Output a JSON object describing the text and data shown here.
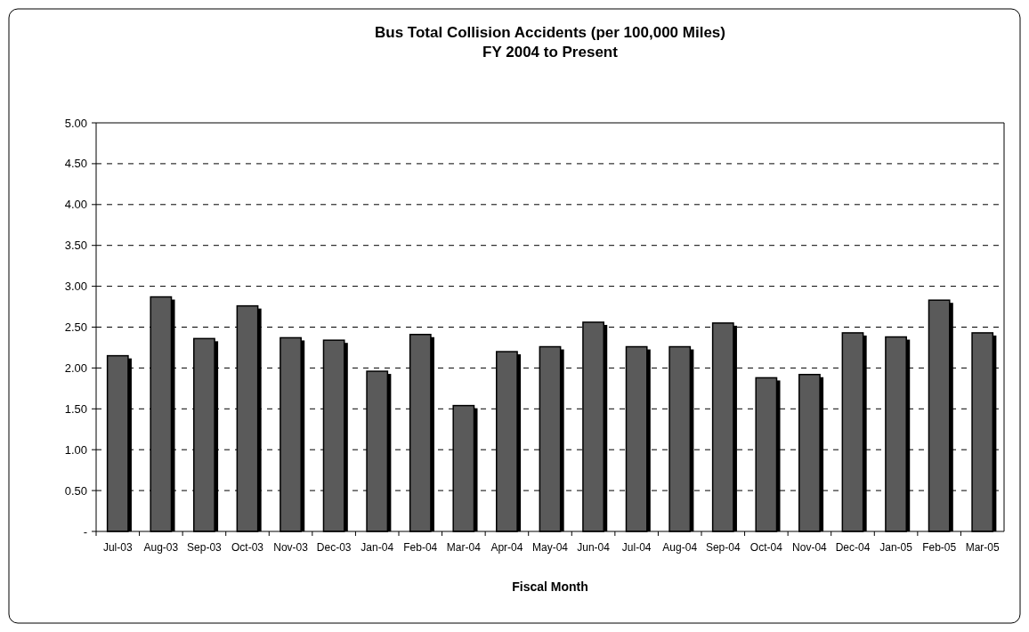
{
  "chart_data": {
    "type": "bar",
    "title": "Bus Total Collision Accidents (per 100,000 Miles)",
    "subtitle": "FY 2004 to Present",
    "xlabel": "Fiscal Month",
    "categories": [
      "Jul-03",
      "Aug-03",
      "Sep-03",
      "Oct-03",
      "Nov-03",
      "Dec-03",
      "Jan-04",
      "Feb-04",
      "Mar-04",
      "Apr-04",
      "May-04",
      "Jun-04",
      "Jul-04",
      "Aug-04",
      "Sep-04",
      "Oct-04",
      "Nov-04",
      "Dec-04",
      "Jan-05",
      "Feb-05",
      "Mar-05"
    ],
    "values": [
      2.15,
      2.87,
      2.36,
      2.76,
      2.37,
      2.34,
      1.96,
      2.41,
      1.54,
      2.2,
      2.26,
      2.56,
      2.26,
      2.26,
      2.55,
      1.88,
      1.92,
      2.43,
      2.38,
      2.83,
      2.43
    ],
    "color": "#5a5a5a",
    "ylim": [
      0,
      5
    ],
    "yticks": [
      {
        "value": 0,
        "label": "-"
      },
      {
        "value": 0.5,
        "label": "0.50"
      },
      {
        "value": 1,
        "label": "1.00"
      },
      {
        "value": 1.5,
        "label": "1.50"
      },
      {
        "value": 2,
        "label": "2.00"
      },
      {
        "value": 2.5,
        "label": "2.50"
      },
      {
        "value": 3,
        "label": "3.00"
      },
      {
        "value": 3.5,
        "label": "3.50"
      },
      {
        "value": 4,
        "label": "4.00"
      },
      {
        "value": 4.5,
        "label": "4.50"
      },
      {
        "value": 5,
        "label": "5.00"
      }
    ],
    "grid": "y",
    "line_style": "dashed"
  }
}
